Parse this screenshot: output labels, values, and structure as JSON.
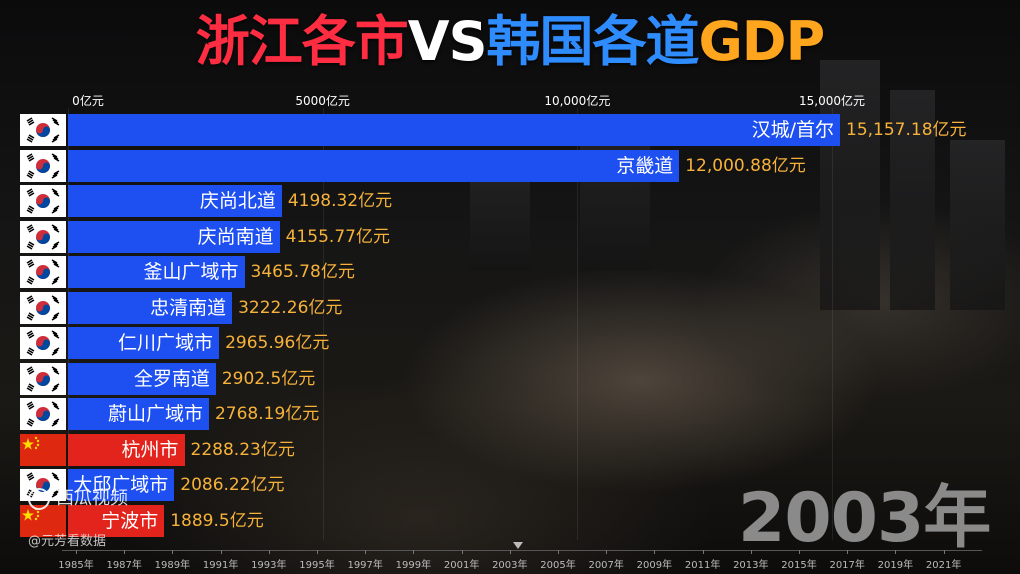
{
  "title": {
    "part1": "浙江各市",
    "part2": "VS",
    "part3": "韩国各道",
    "part4": "GDP",
    "colors": {
      "part1": "#ff2d41",
      "part2": "#ffffff",
      "part3": "#2f8cff",
      "part4": "#ffa51e"
    }
  },
  "year_label": "2003年",
  "watermark": {
    "platform": "西瓜视频",
    "author": "@元芳看数据"
  },
  "timeline": {
    "ticks": [
      "1985年",
      "1987年",
      "1989年",
      "1991年",
      "1993年",
      "1995年",
      "1997年",
      "1999年",
      "2001年",
      "2003年",
      "2005年",
      "2007年",
      "2009年",
      "2011年",
      "2013年",
      "2015年",
      "2017年",
      "2019年",
      "2021年"
    ],
    "current": "2003年"
  },
  "chart_data": {
    "type": "bar",
    "orientation": "horizontal",
    "xlim": [
      0,
      16500
    ],
    "x_ticks": [
      {
        "value": 0,
        "label": "0亿元"
      },
      {
        "value": 5000,
        "label": "5000亿元"
      },
      {
        "value": 10000,
        "label": "10,000亿元"
      },
      {
        "value": 15000,
        "label": "15,000亿元"
      }
    ],
    "grid": true,
    "colors": {
      "korea": "#1e4ff0",
      "china": "#e2241c"
    },
    "bars": [
      {
        "name": "汉城/首尔",
        "value": 15157.18,
        "value_label": "15,157.18亿元",
        "country": "korea"
      },
      {
        "name": "京畿道",
        "value": 12000.88,
        "value_label": "12,000.88亿元",
        "country": "korea"
      },
      {
        "name": "庆尚北道",
        "value": 4198.32,
        "value_label": "4198.32亿元",
        "country": "korea"
      },
      {
        "name": "庆尚南道",
        "value": 4155.77,
        "value_label": "4155.77亿元",
        "country": "korea"
      },
      {
        "name": "釜山广域市",
        "value": 3465.78,
        "value_label": "3465.78亿元",
        "country": "korea"
      },
      {
        "name": "忠清南道",
        "value": 3222.26,
        "value_label": "3222.26亿元",
        "country": "korea"
      },
      {
        "name": "仁川广域市",
        "value": 2965.96,
        "value_label": "2965.96亿元",
        "country": "korea"
      },
      {
        "name": "全罗南道",
        "value": 2902.5,
        "value_label": "2902.5亿元",
        "country": "korea"
      },
      {
        "name": "蔚山广域市",
        "value": 2768.19,
        "value_label": "2768.19亿元",
        "country": "korea"
      },
      {
        "name": "杭州市",
        "value": 2288.23,
        "value_label": "2288.23亿元",
        "country": "china"
      },
      {
        "name": "大邱广域市",
        "value": 2086.22,
        "value_label": "2086.22亿元",
        "country": "korea"
      },
      {
        "name": "宁波市",
        "value": 1889.5,
        "value_label": "1889.5亿元",
        "country": "china"
      }
    ]
  }
}
